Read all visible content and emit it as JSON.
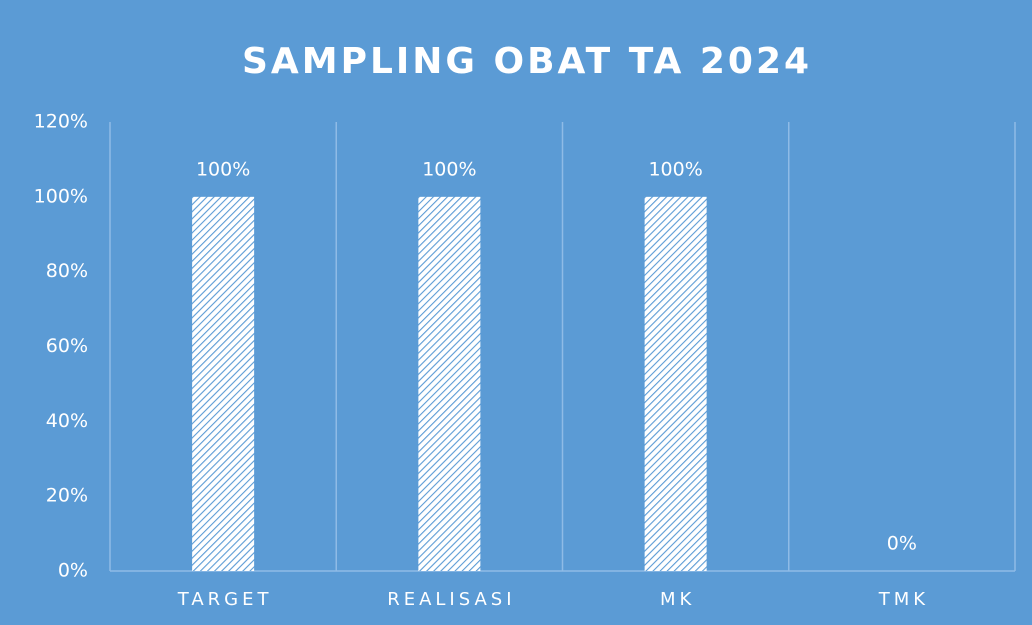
{
  "chart_data": {
    "type": "bar",
    "title": "SAMPLING OBAT TA 2024",
    "categories": [
      "TARGET",
      "REALISASI",
      "MK",
      "TMK"
    ],
    "values": [
      100,
      100,
      100,
      0
    ],
    "value_labels": [
      "100%",
      "100%",
      "100%",
      "0%"
    ],
    "color": "#5b9bd5",
    "ylim": [
      0,
      120
    ],
    "yticks": [
      {
        "value": 0,
        "label": "0%"
      },
      {
        "value": 20,
        "label": "20%"
      },
      {
        "value": 40,
        "label": "40%"
      },
      {
        "value": 60,
        "label": "60%"
      },
      {
        "value": 80,
        "label": "80%"
      },
      {
        "value": 100,
        "label": "100%"
      },
      {
        "value": 120,
        "label": "120%"
      }
    ]
  }
}
